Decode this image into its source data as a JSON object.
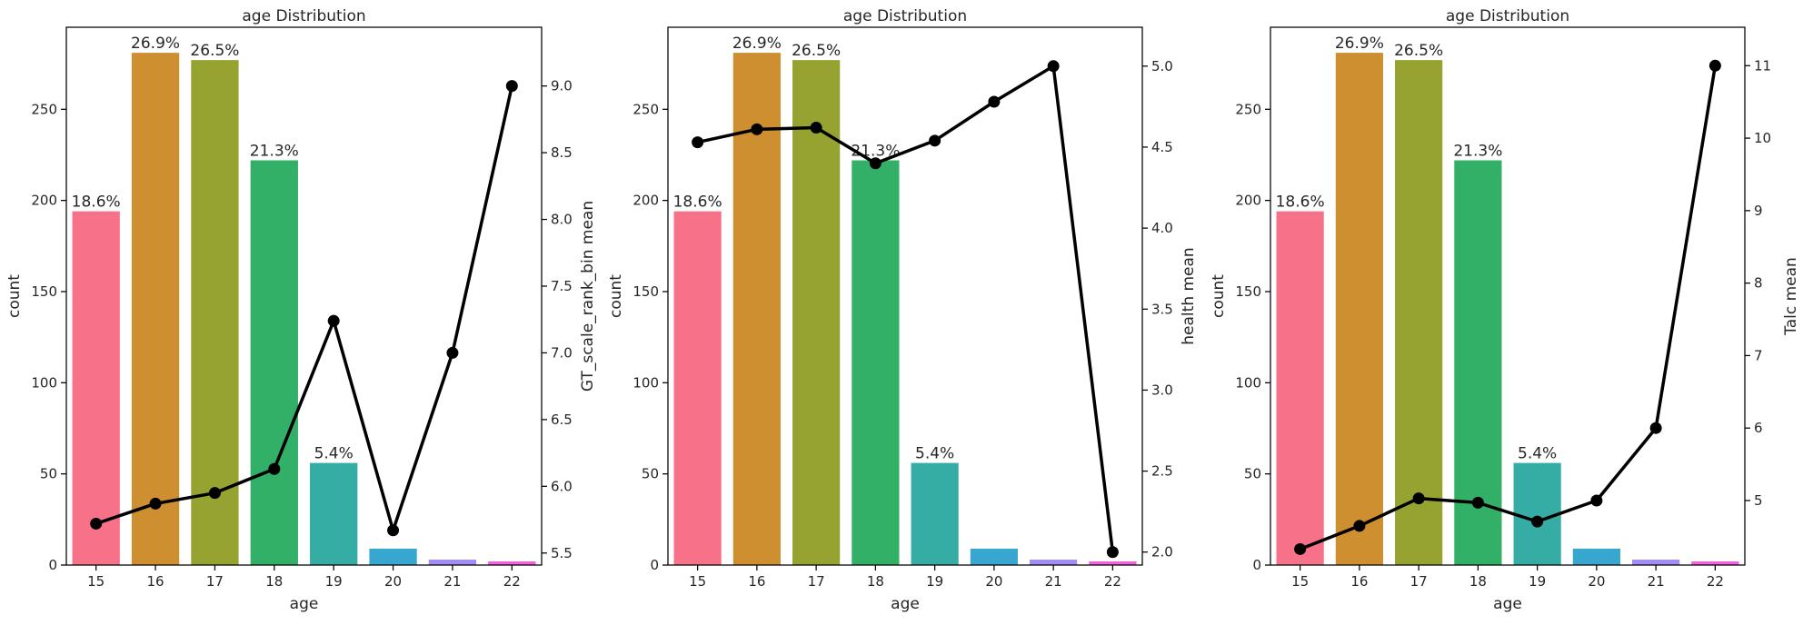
{
  "chart_data": [
    {
      "type": "bar",
      "title": "age Distribution",
      "xlabel": "age",
      "ylabel": "count",
      "y2label": "GT_scale_rank_bin mean",
      "categories": [
        "15",
        "16",
        "17",
        "18",
        "19",
        "20",
        "21",
        "22"
      ],
      "values": [
        194,
        281,
        277,
        222,
        56,
        9,
        3,
        2
      ],
      "bar_labels": [
        "18.6%",
        "26.9%",
        "26.5%",
        "21.3%",
        "5.4%",
        "",
        "",
        ""
      ],
      "ylim": [
        0,
        295
      ],
      "yticks": [
        0,
        50,
        100,
        150,
        200,
        250
      ],
      "line_values": [
        5.72,
        5.87,
        5.95,
        6.13,
        7.24,
        5.67,
        7.0,
        9.0
      ],
      "y2lim": [
        5.41,
        9.44
      ],
      "y2ticks": [
        5.5,
        6.0,
        6.5,
        7.0,
        7.5,
        8.0,
        8.5,
        9.0
      ],
      "y2tick_labels": [
        "5.5",
        "6.0",
        "6.5",
        "7.0",
        "7.5",
        "8.0",
        "8.5",
        "9.0"
      ],
      "colors": [
        "#f77189",
        "#ce8f31",
        "#96a331",
        "#33b068",
        "#36ada4",
        "#38a7d0",
        "#a48cf4",
        "#f561dd"
      ],
      "line_color": "#000000",
      "grid": false
    },
    {
      "type": "bar",
      "title": "age Distribution",
      "xlabel": "age",
      "ylabel": "count",
      "y2label": "health mean",
      "categories": [
        "15",
        "16",
        "17",
        "18",
        "19",
        "20",
        "21",
        "22"
      ],
      "values": [
        194,
        281,
        277,
        222,
        56,
        9,
        3,
        2
      ],
      "bar_labels": [
        "18.6%",
        "26.9%",
        "26.5%",
        "21.3%",
        "5.4%",
        "",
        "",
        ""
      ],
      "ylim": [
        0,
        295
      ],
      "yticks": [
        0,
        50,
        100,
        150,
        200,
        250
      ],
      "line_values": [
        4.53,
        4.61,
        4.62,
        4.4,
        4.54,
        4.78,
        5.0,
        2.0
      ],
      "y2lim": [
        1.92,
        5.24
      ],
      "y2ticks": [
        2.0,
        2.5,
        3.0,
        3.5,
        4.0,
        4.5,
        5.0
      ],
      "y2tick_labels": [
        "2.0",
        "2.5",
        "3.0",
        "3.5",
        "4.0",
        "4.5",
        "5.0"
      ],
      "colors": [
        "#f77189",
        "#ce8f31",
        "#96a331",
        "#33b068",
        "#36ada4",
        "#38a7d0",
        "#a48cf4",
        "#f561dd"
      ],
      "line_color": "#000000",
      "grid": false
    },
    {
      "type": "bar",
      "title": "age Distribution",
      "xlabel": "age",
      "ylabel": "count",
      "y2label": "Talc mean",
      "categories": [
        "15",
        "16",
        "17",
        "18",
        "19",
        "20",
        "21",
        "22"
      ],
      "values": [
        194,
        281,
        277,
        222,
        56,
        9,
        3,
        2
      ],
      "bar_labels": [
        "18.6%",
        "26.9%",
        "26.5%",
        "21.3%",
        "5.4%",
        "",
        "",
        ""
      ],
      "ylim": [
        0,
        295
      ],
      "yticks": [
        0,
        50,
        100,
        150,
        200,
        250
      ],
      "line_values": [
        4.33,
        4.65,
        5.03,
        4.97,
        4.71,
        5.0,
        6.0,
        11.0
      ],
      "y2lim": [
        4.11,
        11.53
      ],
      "y2ticks": [
        5,
        6,
        7,
        8,
        9,
        10,
        11
      ],
      "y2tick_labels": [
        "5",
        "6",
        "7",
        "8",
        "9",
        "10",
        "11"
      ],
      "colors": [
        "#f77189",
        "#ce8f31",
        "#96a331",
        "#33b068",
        "#36ada4",
        "#38a7d0",
        "#a48cf4",
        "#f561dd"
      ],
      "line_color": "#000000",
      "grid": false
    }
  ]
}
